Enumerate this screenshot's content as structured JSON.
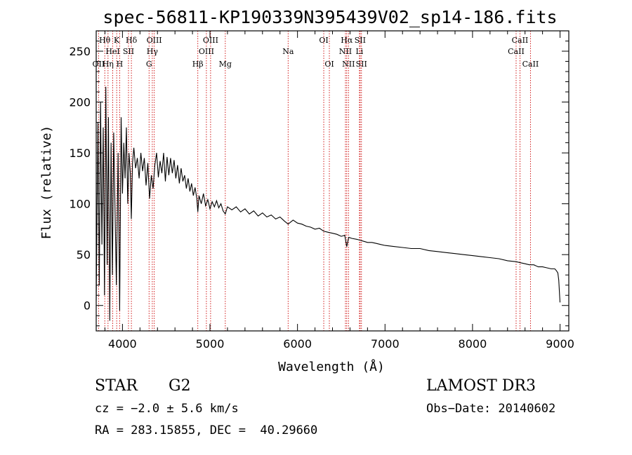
{
  "chart_data": {
    "type": "line",
    "title": "spec-56811-KP190339N395439V02_sp14-186.fits",
    "xlabel": "Wavelength (Å)",
    "ylabel": "Flux (relative)",
    "xlim": [
      3700,
      9100
    ],
    "ylim": [
      -25,
      270
    ],
    "xticks": [
      4000,
      5000,
      6000,
      7000,
      8000,
      9000
    ],
    "yticks": [
      0,
      50,
      100,
      150,
      200,
      250
    ],
    "xtick_labels": [
      "4000",
      "5000",
      "6000",
      "7000",
      "8000",
      "9000"
    ],
    "ytick_labels": [
      "0",
      "50",
      "100",
      "150",
      "200",
      "250"
    ],
    "series": [
      {
        "name": "flux",
        "points": [
          [
            3700,
            5
          ],
          [
            3720,
            180
          ],
          [
            3735,
            20
          ],
          [
            3750,
            200
          ],
          [
            3765,
            60
          ],
          [
            3780,
            175
          ],
          [
            3795,
            10
          ],
          [
            3810,
            215
          ],
          [
            3825,
            40
          ],
          [
            3840,
            185
          ],
          [
            3855,
            -15
          ],
          [
            3870,
            160
          ],
          [
            3885,
            30
          ],
          [
            3900,
            170
          ],
          [
            3915,
            95
          ],
          [
            3930,
            20
          ],
          [
            3950,
            150
          ],
          [
            3968,
            -5
          ],
          [
            3985,
            185
          ],
          [
            4000,
            110
          ],
          [
            4015,
            160
          ],
          [
            4030,
            125
          ],
          [
            4045,
            175
          ],
          [
            4060,
            100
          ],
          [
            4075,
            150
          ],
          [
            4090,
            130
          ],
          [
            4101,
            85
          ],
          [
            4115,
            140
          ],
          [
            4130,
            155
          ],
          [
            4150,
            135
          ],
          [
            4170,
            145
          ],
          [
            4190,
            125
          ],
          [
            4210,
            150
          ],
          [
            4230,
            132
          ],
          [
            4250,
            145
          ],
          [
            4270,
            118
          ],
          [
            4290,
            140
          ],
          [
            4310,
            105
          ],
          [
            4330,
            128
          ],
          [
            4350,
            115
          ],
          [
            4370,
            138
          ],
          [
            4390,
            150
          ],
          [
            4410,
            126
          ],
          [
            4430,
            142
          ],
          [
            4450,
            130
          ],
          [
            4470,
            150
          ],
          [
            4490,
            122
          ],
          [
            4510,
            146
          ],
          [
            4530,
            128
          ],
          [
            4550,
            145
          ],
          [
            4570,
            130
          ],
          [
            4590,
            143
          ],
          [
            4610,
            125
          ],
          [
            4630,
            138
          ],
          [
            4650,
            120
          ],
          [
            4670,
            135
          ],
          [
            4690,
            122
          ],
          [
            4710,
            128
          ],
          [
            4730,
            115
          ],
          [
            4750,
            125
          ],
          [
            4770,
            112
          ],
          [
            4790,
            120
          ],
          [
            4810,
            108
          ],
          [
            4830,
            116
          ],
          [
            4850,
            105
          ],
          [
            4861,
            92
          ],
          [
            4875,
            108
          ],
          [
            4900,
            100
          ],
          [
            4925,
            110
          ],
          [
            4950,
            98
          ],
          [
            4975,
            104
          ],
          [
            5000,
            95
          ],
          [
            5025,
            102
          ],
          [
            5050,
            97
          ],
          [
            5075,
            103
          ],
          [
            5100,
            96
          ],
          [
            5125,
            100
          ],
          [
            5150,
            93
          ],
          [
            5175,
            90
          ],
          [
            5200,
            97
          ],
          [
            5250,
            94
          ],
          [
            5300,
            97
          ],
          [
            5350,
            92
          ],
          [
            5400,
            95
          ],
          [
            5450,
            90
          ],
          [
            5500,
            93
          ],
          [
            5550,
            88
          ],
          [
            5600,
            91
          ],
          [
            5650,
            87
          ],
          [
            5700,
            89
          ],
          [
            5750,
            85
          ],
          [
            5800,
            87
          ],
          [
            5850,
            83
          ],
          [
            5893,
            80
          ],
          [
            5950,
            84
          ],
          [
            6000,
            81
          ],
          [
            6050,
            80
          ],
          [
            6100,
            78
          ],
          [
            6150,
            77
          ],
          [
            6200,
            75
          ],
          [
            6250,
            76
          ],
          [
            6300,
            73
          ],
          [
            6350,
            72
          ],
          [
            6400,
            71
          ],
          [
            6450,
            70
          ],
          [
            6500,
            68
          ],
          [
            6540,
            69
          ],
          [
            6563,
            58
          ],
          [
            6585,
            67
          ],
          [
            6620,
            66
          ],
          [
            6680,
            65
          ],
          [
            6720,
            64
          ],
          [
            6760,
            63
          ],
          [
            6800,
            62
          ],
          [
            6850,
            62
          ],
          [
            6900,
            61
          ],
          [
            6950,
            60
          ],
          [
            7000,
            59
          ],
          [
            7100,
            58
          ],
          [
            7200,
            57
          ],
          [
            7300,
            56
          ],
          [
            7400,
            56
          ],
          [
            7500,
            54
          ],
          [
            7600,
            53
          ],
          [
            7700,
            52
          ],
          [
            7800,
            51
          ],
          [
            7900,
            50
          ],
          [
            8000,
            49
          ],
          [
            8100,
            48
          ],
          [
            8200,
            47
          ],
          [
            8300,
            46
          ],
          [
            8400,
            44
          ],
          [
            8500,
            43
          ],
          [
            8550,
            42
          ],
          [
            8600,
            41
          ],
          [
            8650,
            40
          ],
          [
            8700,
            40
          ],
          [
            8750,
            38
          ],
          [
            8800,
            38
          ],
          [
            8850,
            37
          ],
          [
            8900,
            36
          ],
          [
            8940,
            36
          ],
          [
            8960,
            34
          ],
          [
            8975,
            32
          ],
          [
            8985,
            25
          ],
          [
            8995,
            10
          ],
          [
            9000,
            3
          ]
        ]
      }
    ],
    "line_markers": [
      {
        "label": "Hθ",
        "x": 3798,
        "row": 1
      },
      {
        "label": "OII",
        "x": 3727,
        "row": 3
      },
      {
        "label": "Hη",
        "x": 3835,
        "row": 3
      },
      {
        "label": "HeI",
        "x": 3889,
        "row": 2
      },
      {
        "label": "K",
        "x": 3934,
        "row": 1
      },
      {
        "label": "H",
        "x": 3968,
        "row": 3
      },
      {
        "label": "SII",
        "x": 4069,
        "row": 2
      },
      {
        "label": "Hδ",
        "x": 4102,
        "row": 1
      },
      {
        "label": "OIII",
        "x": 4363,
        "row": 1
      },
      {
        "label": "Hγ",
        "x": 4341,
        "row": 2
      },
      {
        "label": "G",
        "x": 4304,
        "row": 3
      },
      {
        "label": "Hβ",
        "x": 4861,
        "row": 3
      },
      {
        "label": "OIII",
        "x": 5007,
        "row": 1
      },
      {
        "label": "OIII",
        "x": 4959,
        "row": 2
      },
      {
        "label": "Mg",
        "x": 5175,
        "row": 3
      },
      {
        "label": "Na",
        "x": 5893,
        "row": 2
      },
      {
        "label": "OI",
        "x": 6300,
        "row": 1
      },
      {
        "label": "OI",
        "x": 6364,
        "row": 3
      },
      {
        "label": "Hα",
        "x": 6563,
        "row": 1
      },
      {
        "label": "NII",
        "x": 6548,
        "row": 2
      },
      {
        "label": "NII",
        "x": 6583,
        "row": 3
      },
      {
        "label": "SII",
        "x": 6716,
        "row": 1
      },
      {
        "label": "Li",
        "x": 6708,
        "row": 2
      },
      {
        "label": "SII",
        "x": 6731,
        "row": 3
      },
      {
        "label": "CaII",
        "x": 8542,
        "row": 1
      },
      {
        "label": "CaII",
        "x": 8498,
        "row": 2
      },
      {
        "label": "CaII",
        "x": 8662,
        "row": 3
      }
    ]
  },
  "info": {
    "object_class": "STAR",
    "subclass": "G2",
    "survey": "LAMOST DR3",
    "cz": "cz = −2.0 ± 5.6 km/s",
    "obs_date": "Obs−Date: 20140602",
    "coords": "RA = 283.15855, DEC =  40.29660"
  },
  "colors": {
    "axes": "#000000",
    "spectrum": "#000000",
    "marker_line": "#cc0000"
  }
}
